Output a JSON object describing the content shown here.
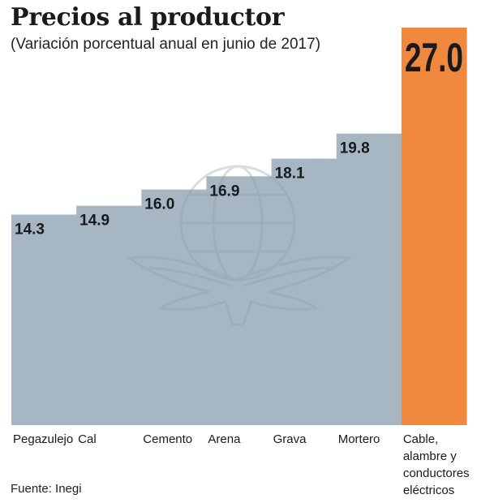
{
  "title": "Precios al productor",
  "subtitle": "(Variación porcentual anual en junio de 2017)",
  "source": "Fuente: Inegi",
  "colors": {
    "bar": "#a6b6c2",
    "highlight": "#f0883e",
    "text": "#1a1a1a",
    "watermark": "#8fa0ab"
  },
  "chart_data": {
    "type": "bar",
    "categories": [
      "Pegazulejo",
      "Cal",
      "Cemento",
      "Arena",
      "Grava",
      "Mortero",
      "Cable, alambre y conductores eléctricos"
    ],
    "category_lines": [
      [
        "Pegazulejo"
      ],
      [
        "Cal"
      ],
      [
        "Cemento"
      ],
      [
        "Arena"
      ],
      [
        "Grava"
      ],
      [
        "Mortero"
      ],
      [
        "Cable,",
        "alambre y",
        "conductores",
        "eléctricos"
      ]
    ],
    "values": [
      14.3,
      14.9,
      16.0,
      16.9,
      18.1,
      19.8,
      27.0
    ],
    "labels": [
      "14.3",
      "14.9",
      "16.0",
      "16.9",
      "18.1",
      "19.8",
      "27.0"
    ],
    "highlight_index": 6,
    "ylim": [
      0,
      27.0
    ],
    "xlabel": "",
    "ylabel": "",
    "grid": false,
    "legend": "none"
  }
}
